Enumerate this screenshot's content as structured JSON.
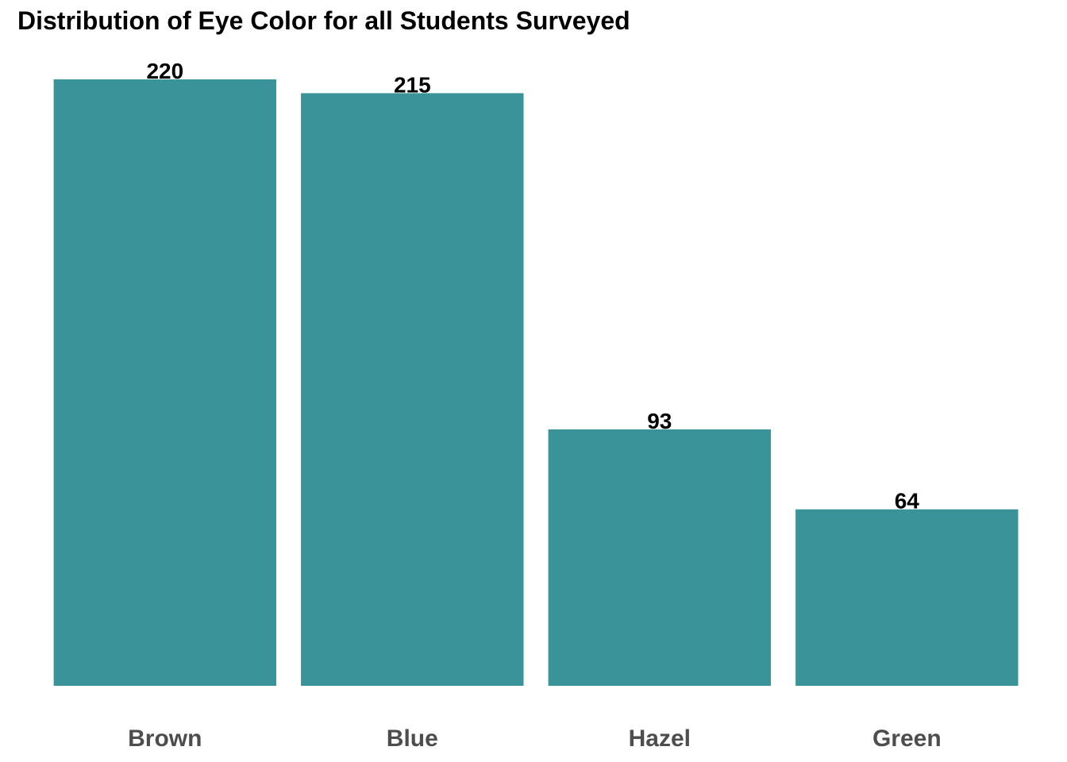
{
  "chart_data": {
    "type": "bar",
    "title": "Distribution of Eye Color for all Students Surveyed",
    "xlabel": "",
    "ylabel": "",
    "categories": [
      "Brown",
      "Blue",
      "Hazel",
      "Green"
    ],
    "values": [
      220,
      215,
      93,
      64
    ],
    "ylim": [
      0,
      220
    ],
    "bar_color": "#3a9399",
    "grid": false,
    "legend": "none",
    "data_labels": true
  }
}
